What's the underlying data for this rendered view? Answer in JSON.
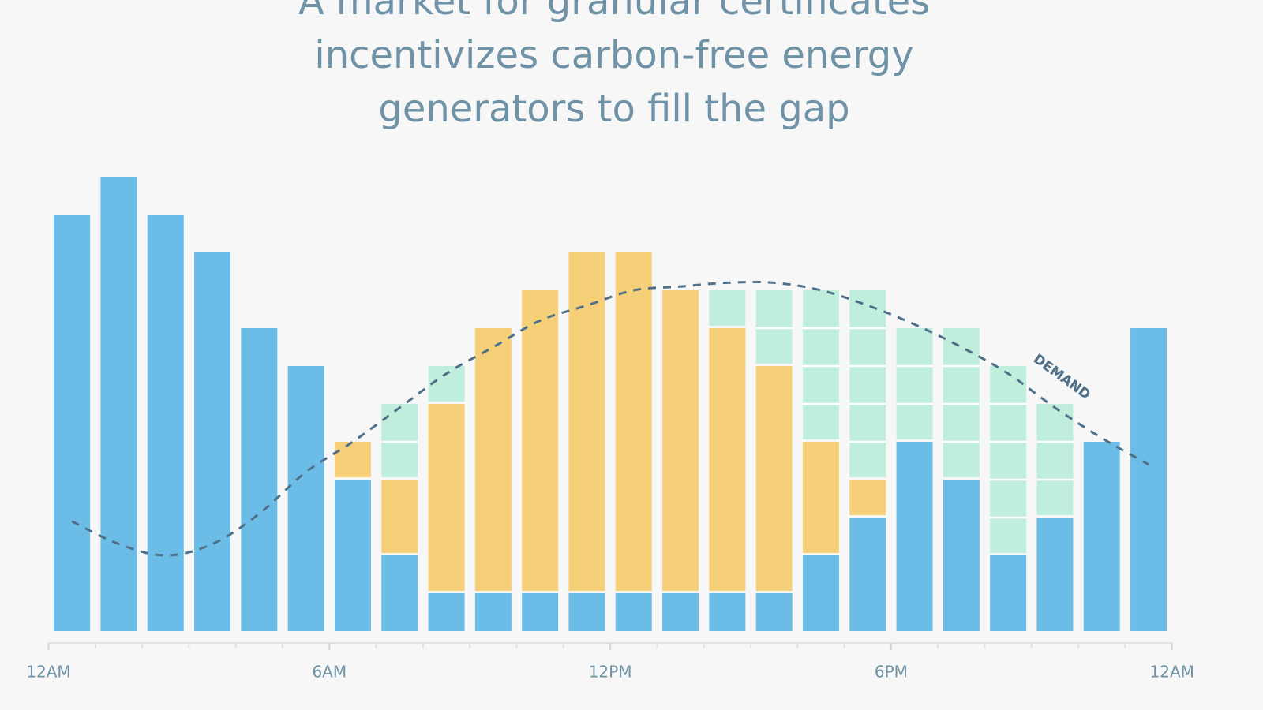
{
  "chart_data": {
    "type": "stacked_bar",
    "title_lines": [
      "A market for granular certificates",
      "incentivizes carbon-free energy",
      "generators to fill the gap"
    ],
    "categories": [
      null,
      null,
      null,
      null,
      null,
      null,
      null,
      null,
      null,
      null,
      null,
      null,
      null,
      null,
      null,
      null,
      null,
      null,
      null,
      null,
      null,
      null,
      null,
      null
    ],
    "series": [
      {
        "color": "#6bbde8",
        "values": [
          11,
          12,
          11,
          10,
          8,
          7,
          4,
          2,
          1,
          1,
          1,
          1,
          1,
          1,
          1,
          1,
          2,
          3,
          5,
          4,
          2,
          3,
          5,
          8
        ]
      },
      {
        "color": "#f6cf79",
        "values": [
          0,
          0,
          0,
          0,
          0,
          0,
          1,
          2,
          5,
          7,
          8,
          9,
          9,
          8,
          7,
          6,
          3,
          1,
          0,
          0,
          0,
          0,
          0,
          0
        ]
      },
      {
        "color": "#c0eedc",
        "block_dividers": true,
        "values": [
          0,
          0,
          0,
          0,
          0,
          0,
          0,
          2,
          1,
          0,
          0,
          0,
          0,
          0,
          1,
          2,
          4,
          5,
          3,
          4,
          5,
          3,
          0,
          0
        ]
      }
    ],
    "demand": {
      "label": "DEMAND",
      "color": "#4f7088",
      "dashed": true,
      "values": [
        2.9,
        2.3,
        2.0,
        2.3,
        3.1,
        4.2,
        5.0,
        5.9,
        6.8,
        7.5,
        8.2,
        8.6,
        9.0,
        9.1,
        9.2,
        9.2,
        9.0,
        8.6,
        8.1,
        7.5,
        6.8,
        5.9,
        5.1,
        4.4
      ]
    },
    "ylim": [
      0,
      12
    ],
    "xlim": [
      0,
      24
    ],
    "xticks": [
      {
        "value": 0,
        "label": "12AM"
      },
      {
        "value": 6,
        "label": "6AM"
      },
      {
        "value": 12,
        "label": "12PM"
      },
      {
        "value": 18,
        "label": "6PM"
      },
      {
        "value": 24,
        "label": "12AM"
      }
    ]
  }
}
